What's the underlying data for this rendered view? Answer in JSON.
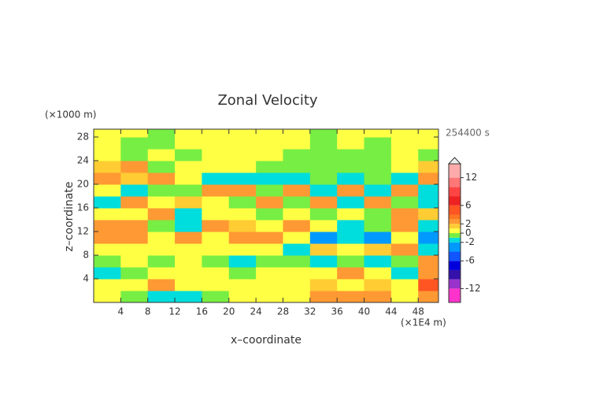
{
  "chart_data": {
    "type": "heatmap",
    "title": "Zonal Velocity",
    "subtitle": "254400 s",
    "xlabel": "x–coordinate",
    "ylabel": "z–coordinate",
    "x_unit": "(×1E4 m)",
    "y_unit": "(×1000 m)",
    "xlim": [
      0,
      51
    ],
    "ylim": [
      0,
      29.33
    ],
    "xticks": [
      4,
      8,
      12,
      16,
      20,
      24,
      28,
      32,
      36,
      40,
      44,
      48
    ],
    "yticks": [
      4,
      8,
      12,
      16,
      20,
      24,
      28
    ],
    "x": [
      2,
      6,
      10,
      14,
      18,
      22,
      26,
      30,
      34,
      38,
      42,
      46,
      50
    ],
    "y": [
      1,
      3,
      5,
      7,
      9,
      11,
      13,
      15,
      17,
      19,
      21,
      23,
      25,
      27,
      29
    ],
    "values": [
      [
        0.5,
        -0.5,
        -1.5,
        -1.5,
        -0.5,
        0.5,
        0.5,
        0.5,
        2.5,
        2.5,
        2.5,
        0.5,
        2.5
      ],
      [
        0.5,
        0.5,
        2.5,
        0.5,
        0.5,
        0.5,
        0.5,
        0.5,
        1.5,
        0.5,
        1.5,
        0.5,
        5
      ],
      [
        -1.5,
        -0.5,
        0.5,
        0.5,
        0.5,
        -0.5,
        0.5,
        0.5,
        0.5,
        2.5,
        0.5,
        -1.5,
        2.5
      ],
      [
        -0.5,
        0.5,
        -0.5,
        0.5,
        -0.5,
        -1.5,
        -0.5,
        -0.5,
        -1.5,
        -0.5,
        -1.5,
        -0.5,
        2.5
      ],
      [
        0.5,
        0.5,
        0.5,
        0.5,
        0.5,
        0.5,
        0.5,
        -1.5,
        1.5,
        0.5,
        1.5,
        2.5,
        -1.5
      ],
      [
        2.5,
        2.5,
        0.5,
        2.5,
        0.5,
        2.5,
        2.5,
        0.5,
        -3,
        -1.5,
        -3,
        0.5,
        -3
      ],
      [
        2.5,
        2.5,
        -0.5,
        -1.5,
        2.5,
        1.5,
        0.5,
        2.5,
        0.5,
        -1.5,
        -0.5,
        2.5,
        -1.5
      ],
      [
        0.5,
        0.5,
        2.5,
        -1.5,
        0.5,
        0.5,
        -0.5,
        0.5,
        -0.5,
        0.5,
        -0.5,
        2.5,
        1.5
      ],
      [
        -1.5,
        2.5,
        0.5,
        1.5,
        0.5,
        -0.5,
        2.5,
        -0.5,
        2.5,
        -1.5,
        2.5,
        -0.5,
        -1.5
      ],
      [
        0.5,
        -1.5,
        -0.5,
        -0.5,
        2.5,
        2.5,
        -0.5,
        2.5,
        -1.5,
        2.5,
        -1.5,
        2.5,
        -1.5
      ],
      [
        2.5,
        1.5,
        2.5,
        0.5,
        -1.5,
        -1.5,
        -1.5,
        -1.5,
        -0.5,
        -1.5,
        -0.5,
        -1.5,
        2.5
      ],
      [
        1.5,
        2.5,
        -0.5,
        0.5,
        0.5,
        0.5,
        -0.5,
        -0.5,
        -0.5,
        -0.5,
        -0.5,
        0.5,
        1.5
      ],
      [
        0.5,
        -0.5,
        0.5,
        -0.5,
        0.5,
        0.5,
        0.5,
        -0.5,
        -0.5,
        -0.5,
        -0.5,
        0.5,
        -0.5
      ],
      [
        0.5,
        -0.5,
        -0.5,
        0.5,
        0.5,
        0.5,
        0.5,
        0.5,
        -0.5,
        0.5,
        -0.5,
        0.5,
        0.5
      ],
      [
        0.5,
        0.5,
        -0.5,
        0.5,
        0.5,
        0.5,
        0.5,
        0.5,
        -0.5,
        0.5,
        0.5,
        0.5,
        0.5
      ]
    ],
    "colorbar": {
      "lim": [
        -15,
        15
      ],
      "ticks": [
        12,
        6,
        2,
        0,
        -2,
        -6,
        -12
      ],
      "levels": [
        -15,
        -12,
        -10,
        -8,
        -6,
        -4,
        -2,
        -1,
        0,
        1,
        2,
        3,
        4,
        6,
        8,
        10,
        12,
        15
      ],
      "colors": [
        "#ff33cc",
        "#9933cc",
        "#3311aa",
        "#0000dd",
        "#1155ff",
        "#0099ff",
        "#00dddd",
        "#77ee44",
        "#ffff44",
        "#ffcc33",
        "#ff9933",
        "#ff7722",
        "#ff5522",
        "#ee2222",
        "#ff4444",
        "#ff7777",
        "#ffaaaa"
      ]
    }
  }
}
